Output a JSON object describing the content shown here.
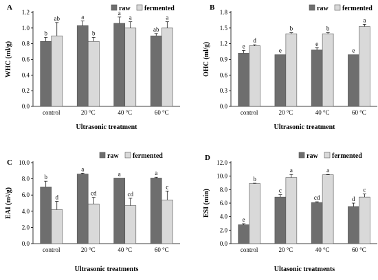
{
  "chart_data": [
    {
      "type": "bar",
      "panel": "A",
      "categories": [
        "control",
        "20 °C",
        "40 °C",
        "60 °C"
      ],
      "series": [
        {
          "name": "raw",
          "values": [
            0.83,
            1.03,
            1.06,
            0.9
          ],
          "errors": [
            0.05,
            0.06,
            0.08,
            0.03
          ],
          "labels": [
            "b",
            "a",
            "a",
            "ab"
          ],
          "color": "#6e6e6e"
        },
        {
          "name": "fermented",
          "values": [
            0.9,
            0.83,
            1.0,
            1.0
          ],
          "errors": [
            0.17,
            0.05,
            0.08,
            0.08
          ],
          "labels": [
            "ab",
            "b",
            "a",
            "a"
          ],
          "color": "#d9d9d9"
        }
      ],
      "ylabel": "WHC (ml/g)",
      "xlabel": "Ultrasonic treatment",
      "ylim": [
        0,
        1.2
      ],
      "yticks": [
        "0.0",
        "0.2",
        "0.4",
        "0.6",
        "0.8",
        "1.0",
        "1.2"
      ],
      "legend": "top-right"
    },
    {
      "type": "bar",
      "panel": "B",
      "categories": [
        "control",
        "20 °C",
        "40 °C",
        "60 °C"
      ],
      "series": [
        {
          "name": "raw",
          "values": [
            1.02,
            0.99,
            1.08,
            0.99
          ],
          "errors": [
            0.05,
            0.0,
            0.04,
            0.0
          ],
          "labels": [
            "e",
            "e",
            "e",
            "e"
          ],
          "color": "#6e6e6e"
        },
        {
          "name": "fermented",
          "values": [
            1.16,
            1.39,
            1.39,
            1.53
          ],
          "errors": [
            0.02,
            0.02,
            0.02,
            0.04
          ],
          "labels": [
            "d",
            "b",
            "b",
            "a"
          ],
          "color": "#d9d9d9"
        }
      ],
      "ylabel": "OHC (ml/g)",
      "xlabel": "Ultrasonic treatment",
      "ylim": [
        0,
        1.8
      ],
      "yticks": [
        "0.0",
        "0.3",
        "0.6",
        "0.9",
        "1.2",
        "1.5",
        "1.8"
      ],
      "legend": "top-right"
    },
    {
      "type": "bar",
      "panel": "C",
      "categories": [
        "control",
        "20 °C",
        "40 °C",
        "60 °C"
      ],
      "series": [
        {
          "name": "raw",
          "values": [
            7.0,
            8.6,
            8.1,
            8.1
          ],
          "errors": [
            0.7,
            0.1,
            0.0,
            0.1
          ],
          "labels": [
            "b",
            "a",
            "a",
            "a"
          ],
          "color": "#6e6e6e"
        },
        {
          "name": "fermented",
          "values": [
            4.2,
            4.9,
            4.7,
            5.4
          ],
          "errors": [
            1.0,
            0.8,
            0.9,
            1.1
          ],
          "labels": [
            "d",
            "cd",
            "cd",
            "c"
          ],
          "color": "#d9d9d9"
        }
      ],
      "ylabel": "EAI (m²/g)",
      "xlabel": "Ultrasonic treatments",
      "ylim": [
        0,
        10
      ],
      "yticks": [
        "0.0",
        "2.0",
        "4.0",
        "6.0",
        "8.0",
        "10.0"
      ],
      "legend": "top-right"
    },
    {
      "type": "bar",
      "panel": "D",
      "categories": [
        "control",
        "20 °C",
        "40 °C",
        "60 °C"
      ],
      "series": [
        {
          "name": "raw",
          "values": [
            2.8,
            6.9,
            6.1,
            5.5
          ],
          "errors": [
            0.15,
            0.35,
            0.1,
            0.5
          ],
          "labels": [
            "e",
            "c",
            "cd",
            "d"
          ],
          "color": "#6e6e6e"
        },
        {
          "name": "fermented",
          "values": [
            8.9,
            9.8,
            10.2,
            6.9
          ],
          "errors": [
            0.05,
            0.45,
            0.05,
            0.45
          ],
          "labels": [
            "b",
            "a",
            "a",
            "c"
          ],
          "color": "#d9d9d9"
        }
      ],
      "ylabel": "ESI (min)",
      "xlabel": "Ultasonic treatments",
      "ylim": [
        0,
        12
      ],
      "yticks": [
        "0.0",
        "2.0",
        "4.0",
        "6.0",
        "8.0",
        "10.0",
        "12.0"
      ],
      "legend": "top-right"
    }
  ]
}
